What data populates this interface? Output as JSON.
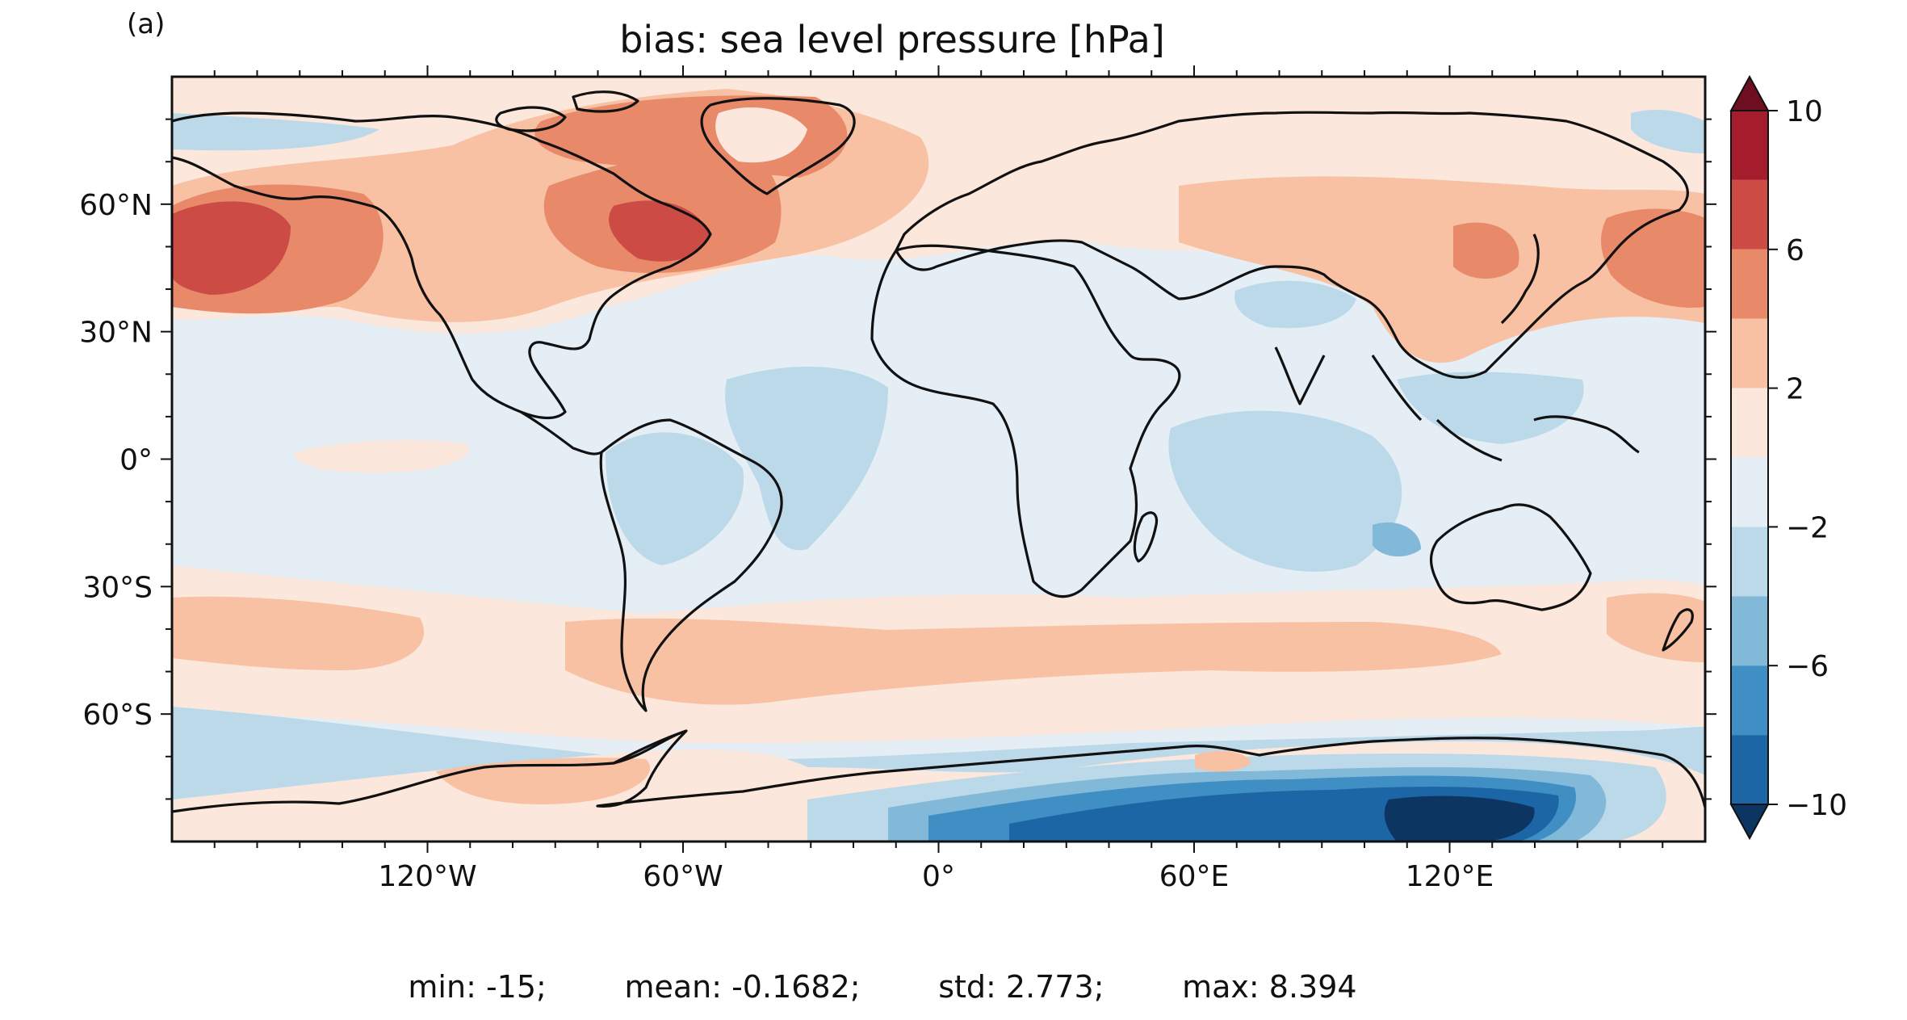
{
  "panel_label": "(a)",
  "title": "bias: sea level pressure [hPa]",
  "stats_text": "min: -15;        mean: -0.1682;        std: 2.773;        max: 8.394",
  "x_ticks": [
    {
      "lon": -120,
      "label": "120°W"
    },
    {
      "lon": -60,
      "label": "60°W"
    },
    {
      "lon": 0,
      "label": "0°"
    },
    {
      "lon": 60,
      "label": "60°E"
    },
    {
      "lon": 120,
      "label": "120°E"
    }
  ],
  "y_ticks": [
    {
      "lat": 60,
      "label": "60°N"
    },
    {
      "lat": 30,
      "label": "30°N"
    },
    {
      "lat": 0,
      "label": "0°"
    },
    {
      "lat": -30,
      "label": "30°S"
    },
    {
      "lat": -60,
      "label": "60°S"
    }
  ],
  "colorbar": {
    "ticks": [
      {
        "value": 10,
        "label": "10"
      },
      {
        "value": 6,
        "label": "6"
      },
      {
        "value": 2,
        "label": "2"
      },
      {
        "value": -2,
        "label": "−2"
      },
      {
        "value": -6,
        "label": "−6"
      },
      {
        "value": -10,
        "label": "−10"
      }
    ],
    "levels": [
      10,
      8,
      6,
      4,
      2,
      0,
      -2,
      -4,
      -6,
      -8,
      -10
    ],
    "colors": [
      "#a51d2d",
      "#cc4b45",
      "#e8896a",
      "#f8c1a3",
      "#fbe7dc",
      "#e5eef5",
      "#bcd9ea",
      "#82b8d8",
      "#3f8fc4",
      "#1c66a6"
    ],
    "extend_max_color": "#6d0f20",
    "extend_min_color": "#0d3561"
  },
  "palette": {
    "ocean_neutral": "#e5eef5",
    "light_red": "#fbe7dc",
    "red2": "#f8c1a3",
    "red3": "#e8896a",
    "red4": "#cc4b45",
    "blue1": "#bcd9ea",
    "blue2": "#82b8d8",
    "blue3": "#3f8fc4",
    "blue4": "#1c66a6",
    "blue5": "#0d3561",
    "coast": "#111111"
  }
}
